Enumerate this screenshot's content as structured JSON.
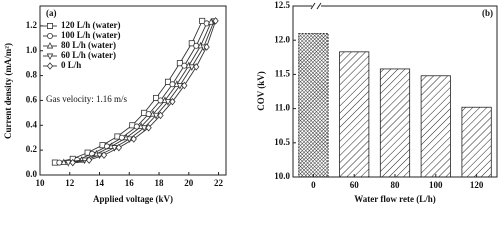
{
  "chart_data": [
    {
      "type": "line",
      "title": "(a)",
      "annotation": "Gas velocity: 1.16 m/s",
      "xlabel": "Applied voltage (kV)",
      "ylabel": "Current density (mA/m²)",
      "xlim": [
        10,
        22.5
      ],
      "xticks": [
        10,
        12,
        14,
        16,
        18,
        20,
        22
      ],
      "ylim": [
        0,
        1.36
      ],
      "yticks": [
        {
          "value": 0,
          "label": "0.0"
        },
        0.2,
        0.4,
        0.6,
        0.8,
        {
          "value": 1,
          "label": "1.0"
        },
        1.2
      ],
      "legend": "upper left",
      "series": [
        {
          "name": "120 L/h (water)",
          "marker": "square",
          "color": "#333",
          "x": [
            11.0,
            12.2,
            13.2,
            14.2,
            15.2,
            16.2,
            17.0,
            17.8,
            18.6,
            19.4,
            20.2,
            20.9
          ],
          "values": [
            0.1,
            0.13,
            0.18,
            0.24,
            0.31,
            0.4,
            0.5,
            0.62,
            0.75,
            0.9,
            1.06,
            1.24
          ]
        },
        {
          "name": "100 L/h (water)",
          "marker": "circle",
          "color": "#333",
          "x": [
            11.3,
            12.5,
            13.5,
            14.5,
            15.5,
            16.5,
            17.3,
            18.1,
            18.9,
            19.7,
            20.5,
            21.2
          ],
          "values": [
            0.1,
            0.12,
            0.17,
            0.23,
            0.3,
            0.39,
            0.49,
            0.6,
            0.73,
            0.88,
            1.04,
            1.22
          ]
        },
        {
          "name": "80 L/h (water)",
          "marker": "triangle-up",
          "color": "#333",
          "x": [
            11.6,
            12.8,
            13.8,
            14.8,
            15.8,
            16.8,
            17.6,
            18.4,
            19.2,
            20.0,
            20.8,
            21.5
          ],
          "values": [
            0.1,
            0.12,
            0.17,
            0.23,
            0.3,
            0.39,
            0.49,
            0.6,
            0.73,
            0.88,
            1.04,
            1.23
          ]
        },
        {
          "name": "60 L/h (water)",
          "marker": "triangle-down",
          "color": "#333",
          "x": [
            11.9,
            13.0,
            14.0,
            15.0,
            16.0,
            17.0,
            17.8,
            18.6,
            19.4,
            20.2,
            21.0,
            21.7
          ],
          "values": [
            0.1,
            0.12,
            0.16,
            0.22,
            0.29,
            0.38,
            0.48,
            0.59,
            0.72,
            0.87,
            1.03,
            1.24
          ]
        },
        {
          "name": "0    L/h",
          "marker": "diamond",
          "color": "#333",
          "x": [
            12.2,
            13.3,
            14.3,
            15.3,
            16.3,
            17.3,
            18.1,
            18.9,
            19.7,
            20.5,
            21.2,
            21.8
          ],
          "values": [
            0.1,
            0.12,
            0.16,
            0.22,
            0.29,
            0.38,
            0.48,
            0.59,
            0.72,
            0.87,
            1.03,
            1.24
          ]
        }
      ]
    },
    {
      "type": "bar",
      "title": "(b)",
      "xlabel": "Water flow rete (L/h)",
      "ylabel": "COV (kV)",
      "categories": [
        "0",
        "60",
        "80",
        "100",
        "120"
      ],
      "values": [
        12.1,
        11.83,
        11.58,
        11.48,
        11.02
      ],
      "hatch": [
        "cross",
        "diagonal",
        "diagonal",
        "diagonal",
        "diagonal"
      ],
      "color": "#222",
      "ylim": [
        10,
        12.5
      ],
      "yticks": [
        {
          "value": 10,
          "label": "10.0"
        },
        10.5,
        {
          "value": 11,
          "label": "11.0"
        },
        11.5,
        {
          "value": 12,
          "label": "12.0"
        },
        12.5
      ]
    }
  ]
}
